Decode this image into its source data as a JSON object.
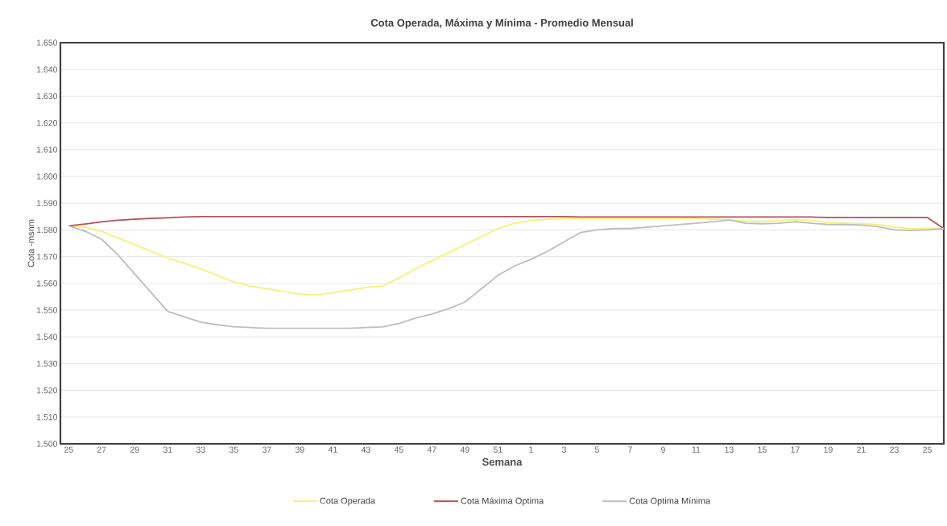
{
  "chart_data": {
    "type": "line",
    "title": "Cota Operada, Máxima y Mínima - Promedio Mensual",
    "xlabel": "Semana",
    "ylabel": "Cota -msnm",
    "categories": [
      "25",
      null,
      "27",
      null,
      "29",
      null,
      "31",
      null,
      "33",
      null,
      "35",
      null,
      "37",
      null,
      "39",
      null,
      "41",
      null,
      "43",
      null,
      "45",
      null,
      "47",
      null,
      "49",
      null,
      "51",
      null,
      "1",
      null,
      "3",
      null,
      "5",
      null,
      "7",
      null,
      "9",
      null,
      "11",
      null,
      "13",
      null,
      "15",
      null,
      "17",
      null,
      "19",
      null,
      "21",
      null,
      "23",
      null,
      "25",
      null
    ],
    "series": [
      {
        "name": "Cota Operada",
        "color": "#f2f27a",
        "values": [
          1581.5,
          1581,
          1579.5,
          1577,
          1574.5,
          1572,
          1569.5,
          1567.5,
          1565.5,
          1563,
          1560.5,
          1559,
          1558,
          1557,
          1556,
          1555.7,
          1556.5,
          1557.5,
          1558.5,
          1559,
          1562,
          1565.5,
          1568.5,
          1571.5,
          1574.5,
          1577.5,
          1580.5,
          1582.5,
          1583.5,
          1584,
          1584.2,
          1584.2,
          1584.2,
          1584.2,
          1584.2,
          1584.2,
          1584.2,
          1584.2,
          1584.2,
          1584,
          1583.8,
          1583.2,
          1583.2,
          1583.5,
          1583.8,
          1583.5,
          1582.8,
          1582.5,
          1582.3,
          1582,
          1581,
          1580.5,
          1580.5,
          1580.5
        ]
      },
      {
        "name": "Cota Máxima Optima",
        "color": "#b5505a",
        "values": [
          1581.5,
          1582.2,
          1583,
          1583.6,
          1584,
          1584.3,
          1584.5,
          1584.8,
          1585,
          1585,
          1585,
          1585,
          1585,
          1585,
          1585,
          1585,
          1585,
          1585,
          1585,
          1585,
          1585,
          1585,
          1585,
          1585,
          1585,
          1585,
          1585,
          1585,
          1585,
          1585,
          1585,
          1584.8,
          1584.8,
          1584.8,
          1584.8,
          1584.8,
          1584.8,
          1584.8,
          1584.8,
          1584.8,
          1584.8,
          1584.8,
          1584.8,
          1584.8,
          1584.8,
          1584.8,
          1584.6,
          1584.6,
          1584.6,
          1584.6,
          1584.6,
          1584.6,
          1584.6,
          1580.5
        ]
      },
      {
        "name": "Cota Optima Mínima",
        "color": "#bdbdbd",
        "values": [
          1581.5,
          1579.5,
          1576.5,
          1570.5,
          1563.5,
          1556.5,
          1549.5,
          1547.5,
          1545.5,
          1544.5,
          1543.8,
          1543.5,
          1543.2,
          1543.2,
          1543.2,
          1543.2,
          1543.2,
          1543.2,
          1543.5,
          1543.7,
          1545,
          1547,
          1548.5,
          1550.5,
          1553,
          1558,
          1563,
          1566.5,
          1569,
          1572,
          1575.5,
          1579,
          1580,
          1580.5,
          1580.5,
          1581,
          1581.5,
          1582,
          1582.5,
          1583,
          1583.7,
          1582.5,
          1582.3,
          1582.5,
          1583,
          1582.5,
          1582,
          1582,
          1581.8,
          1581.2,
          1580,
          1579.8,
          1580,
          1580.5
        ]
      }
    ],
    "ylim": [
      1500,
      1650
    ],
    "yticks": [
      {
        "value": 1500,
        "label": "1.500"
      },
      {
        "value": 1510,
        "label": "1.510"
      },
      {
        "value": 1520,
        "label": "1.520"
      },
      {
        "value": 1530,
        "label": "1.530"
      },
      {
        "value": 1540,
        "label": "1.540"
      },
      {
        "value": 1550,
        "label": "1.550"
      },
      {
        "value": 1560,
        "label": "1.560"
      },
      {
        "value": 1570,
        "label": "1.570"
      },
      {
        "value": 1580,
        "label": "1.580"
      },
      {
        "value": 1590,
        "label": "1.590"
      },
      {
        "value": 1600,
        "label": "1.600"
      },
      {
        "value": 1610,
        "label": "1.610"
      },
      {
        "value": 1620,
        "label": "1.620"
      },
      {
        "value": 1630,
        "label": "1.630"
      },
      {
        "value": 1640,
        "label": "1.640"
      },
      {
        "value": 1650,
        "label": "1.650"
      }
    ],
    "grid": "y",
    "legend": "bottom",
    "marker": "none",
    "line_style": "solid"
  }
}
